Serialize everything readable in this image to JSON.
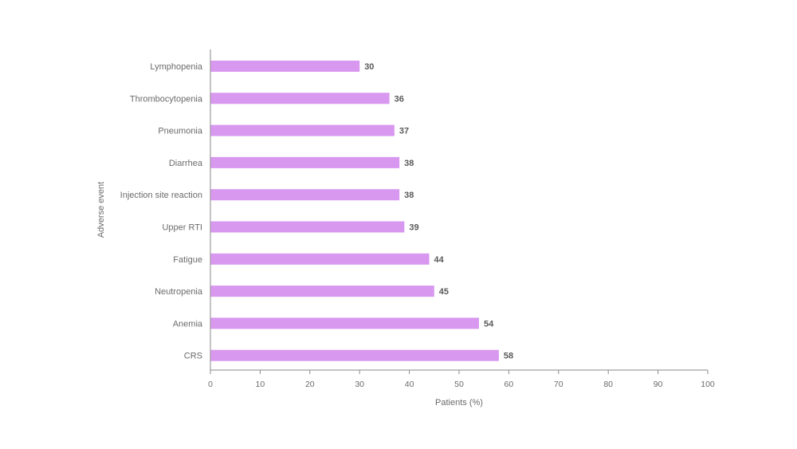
{
  "chart_data": {
    "type": "bar",
    "orientation": "horizontal",
    "categories": [
      "Lymphopenia",
      "Thrombocytopenia",
      "Pneumonia",
      "Diarrhea",
      "Injection site reaction",
      "Upper RTI",
      "Fatigue",
      "Neutropenia",
      "Anemia",
      "CRS"
    ],
    "values": [
      30,
      36,
      37,
      38,
      38,
      39,
      44,
      45,
      54,
      58
    ],
    "xlabel": "Patients (%)",
    "ylabel": "Adverse event",
    "xlim": [
      0,
      100
    ],
    "xticks": [
      0,
      10,
      20,
      30,
      40,
      50,
      60,
      70,
      80,
      90,
      100
    ],
    "grid": false,
    "bar_color": "#d898f0",
    "axis_color": "#8a8a8a"
  }
}
